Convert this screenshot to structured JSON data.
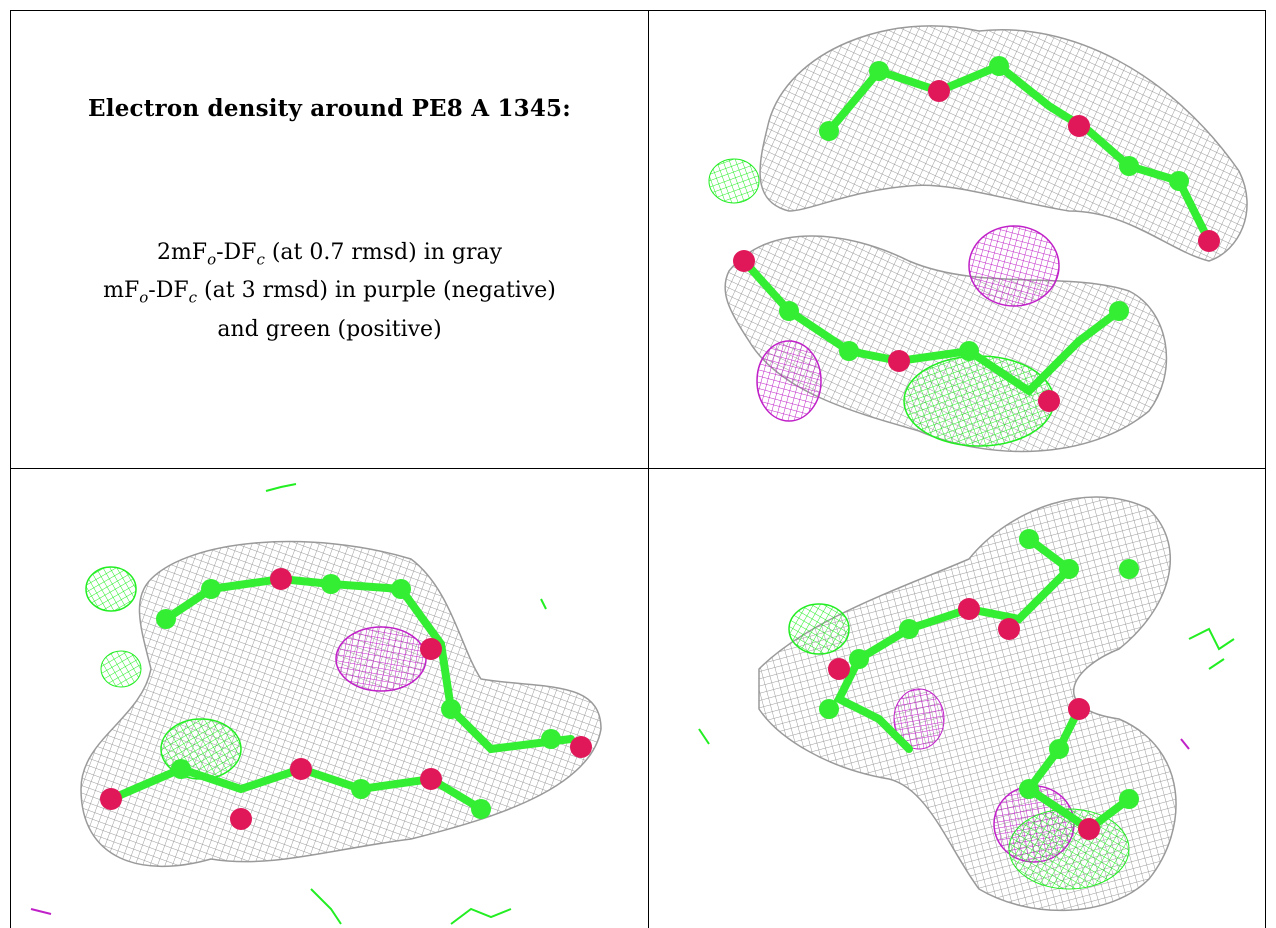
{
  "caption": {
    "title": "Electron density around PE8 A 1345:",
    "line1": {
      "pre": "2mF",
      "sub1": "o",
      "mid": "-DF",
      "sub2": "c",
      "post": " (at 0.7 rmsd) in gray"
    },
    "line2": {
      "pre": "mF",
      "sub1": "o",
      "mid": "-DF",
      "sub2": "c",
      "post": " (at 3 rmsd) in purple (negative)"
    },
    "line3": "and green (positive)"
  },
  "colors": {
    "mesh_gray": "#9a9a9a",
    "carbon_green": "#33ee33",
    "oxygen_red": "#e0185a",
    "negative_purple": "#c020c8",
    "positive_green": "#22ee22"
  },
  "panels": [
    {
      "name": "top-right",
      "view": "density-view-1"
    },
    {
      "name": "bottom-left",
      "view": "density-view-2"
    },
    {
      "name": "bottom-right",
      "view": "density-view-3"
    }
  ]
}
